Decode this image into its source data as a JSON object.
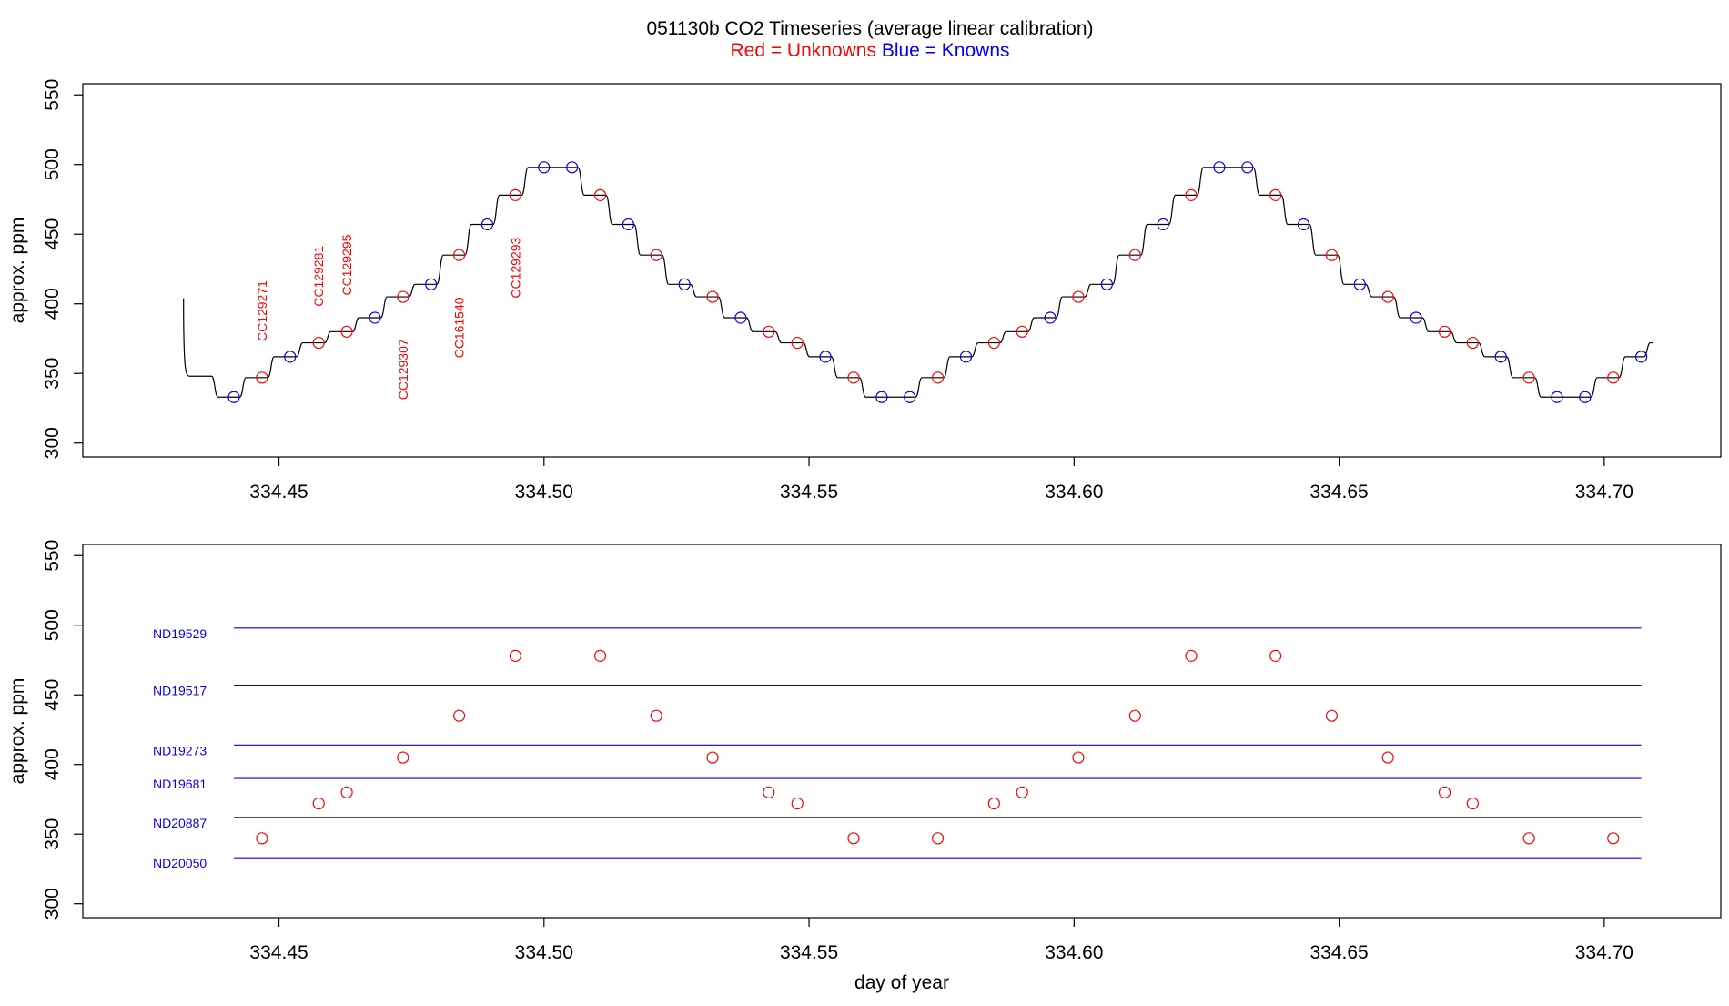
{
  "header": {
    "title": "051130b   CO2 Timeseries (average linear calibration)",
    "legend_red": "Red = Unknowns",
    "legend_blue": "Blue = Knowns"
  },
  "colors": {
    "unknown": "#ff0000",
    "known": "#0000ff",
    "trace": "#000000",
    "axis": "#000000"
  },
  "chart_data": [
    {
      "type": "line",
      "panel": "top",
      "xlabel": "",
      "ylabel": "approx. ppm",
      "xlim": [
        334.413,
        334.722
      ],
      "ylim": [
        290,
        558
      ],
      "x_ticks": [
        334.45,
        334.5,
        334.55,
        334.6,
        334.65,
        334.7
      ],
      "x_tick_labels": [
        "334.45",
        "334.50",
        "334.55",
        "334.60",
        "334.65",
        "334.70"
      ],
      "y_ticks": [
        300,
        350,
        400,
        450,
        500,
        550
      ],
      "y_tick_labels": [
        "300",
        "350",
        "400",
        "450",
        "500",
        "550"
      ],
      "trace_start": [
        334.432,
        404,
        348
      ],
      "trace_steps": [
        [
          334.4415,
          333,
          "known"
        ],
        [
          334.4468,
          347,
          "unknown"
        ],
        [
          334.4521,
          362,
          "known"
        ],
        [
          334.4575,
          372,
          "unknown"
        ],
        [
          334.4628,
          380,
          "unknown"
        ],
        [
          334.4681,
          390,
          "known"
        ],
        [
          334.4734,
          405,
          "unknown"
        ],
        [
          334.4787,
          414,
          "known"
        ],
        [
          334.484,
          435,
          "unknown"
        ],
        [
          334.4893,
          457,
          "known"
        ],
        [
          334.4946,
          478,
          "unknown"
        ],
        [
          334.5,
          498,
          "known"
        ],
        [
          334.5053,
          498,
          "known"
        ],
        [
          334.5106,
          478,
          "unknown"
        ],
        [
          334.5159,
          457,
          "known"
        ],
        [
          334.5212,
          435,
          "unknown"
        ],
        [
          334.5265,
          414,
          "known"
        ],
        [
          334.5318,
          405,
          "unknown"
        ],
        [
          334.5371,
          390,
          "known"
        ],
        [
          334.5424,
          380,
          "unknown"
        ],
        [
          334.5478,
          372,
          "unknown"
        ],
        [
          334.5531,
          362,
          "known"
        ],
        [
          334.5584,
          347,
          "unknown"
        ],
        [
          334.5637,
          333,
          "known"
        ],
        [
          334.569,
          333,
          "known"
        ],
        [
          334.5743,
          347,
          "unknown"
        ],
        [
          334.5796,
          362,
          "known"
        ],
        [
          334.5849,
          372,
          "unknown"
        ],
        [
          334.5902,
          380,
          "unknown"
        ],
        [
          334.5955,
          390,
          "known"
        ],
        [
          334.6008,
          405,
          "unknown"
        ],
        [
          334.6062,
          414,
          "known"
        ],
        [
          334.6115,
          435,
          "unknown"
        ],
        [
          334.6168,
          457,
          "known"
        ],
        [
          334.6221,
          478,
          "unknown"
        ],
        [
          334.6274,
          498,
          "known"
        ],
        [
          334.6327,
          498,
          "known"
        ],
        [
          334.638,
          478,
          "unknown"
        ],
        [
          334.6433,
          457,
          "known"
        ],
        [
          334.6486,
          435,
          "unknown"
        ],
        [
          334.6539,
          414,
          "known"
        ],
        [
          334.6592,
          405,
          "unknown"
        ],
        [
          334.6645,
          390,
          "known"
        ],
        [
          334.6699,
          380,
          "unknown"
        ],
        [
          334.6752,
          372,
          "unknown"
        ],
        [
          334.6805,
          362,
          "known"
        ],
        [
          334.6858,
          347,
          "unknown"
        ],
        [
          334.6911,
          333,
          "known"
        ],
        [
          334.6964,
          333,
          "known"
        ],
        [
          334.7017,
          347,
          "unknown"
        ],
        [
          334.707,
          362,
          "known"
        ]
      ],
      "trace_end": [
        334.7093,
        372
      ],
      "annotations": [
        {
          "label": "CC129271",
          "x": 334.4468,
          "y": 373
        },
        {
          "label": "CC129281",
          "x": 334.4575,
          "y": 398
        },
        {
          "label": "CC129295",
          "x": 334.4628,
          "y": 406
        },
        {
          "label": "CC129307",
          "x": 334.4734,
          "y": 331
        },
        {
          "label": "CC161540",
          "x": 334.484,
          "y": 361
        },
        {
          "label": "CC129293",
          "x": 334.4946,
          "y": 404
        }
      ]
    },
    {
      "type": "scatter",
      "panel": "bottom",
      "xlabel": "day of year",
      "ylabel": "approx. ppm",
      "xlim": [
        334.413,
        334.722
      ],
      "ylim": [
        290,
        558
      ],
      "x_ticks": [
        334.45,
        334.5,
        334.55,
        334.6,
        334.65,
        334.7
      ],
      "x_tick_labels": [
        "334.45",
        "334.50",
        "334.55",
        "334.60",
        "334.65",
        "334.70"
      ],
      "y_ticks": [
        300,
        350,
        400,
        450,
        500,
        550
      ],
      "y_tick_labels": [
        "300",
        "350",
        "400",
        "450",
        "500",
        "550"
      ],
      "reference_lines": [
        {
          "name": "ND19529",
          "y": 498
        },
        {
          "name": "ND19517",
          "y": 457
        },
        {
          "name": "ND19273",
          "y": 414
        },
        {
          "name": "ND19681",
          "y": 390
        },
        {
          "name": "ND20887",
          "y": 362
        },
        {
          "name": "ND20050",
          "y": 333
        }
      ],
      "reference_x_range": [
        334.4415,
        334.707
      ],
      "points": [
        [
          334.4468,
          347
        ],
        [
          334.4575,
          372
        ],
        [
          334.4628,
          380
        ],
        [
          334.4734,
          405
        ],
        [
          334.484,
          435
        ],
        [
          334.4946,
          478
        ],
        [
          334.5106,
          478
        ],
        [
          334.5212,
          435
        ],
        [
          334.5318,
          405
        ],
        [
          334.5424,
          380
        ],
        [
          334.5478,
          372
        ],
        [
          334.5584,
          347
        ],
        [
          334.5743,
          347
        ],
        [
          334.5849,
          372
        ],
        [
          334.5902,
          380
        ],
        [
          334.6008,
          405
        ],
        [
          334.6115,
          435
        ],
        [
          334.6221,
          478
        ],
        [
          334.638,
          478
        ],
        [
          334.6486,
          435
        ],
        [
          334.6592,
          405
        ],
        [
          334.6699,
          380
        ],
        [
          334.6752,
          372
        ],
        [
          334.6858,
          347
        ],
        [
          334.7017,
          347
        ]
      ]
    }
  ]
}
